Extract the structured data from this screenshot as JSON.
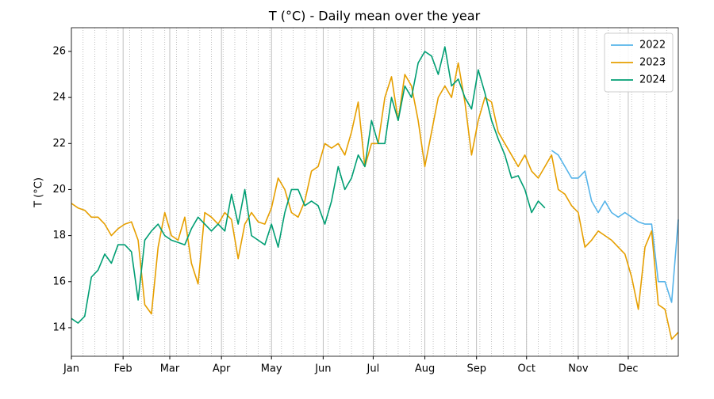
{
  "chart_data": {
    "type": "line",
    "title": "T (°C) - Daily mean over the year",
    "y_label": "T (°C)",
    "x": [
      0,
      4,
      8,
      12,
      16,
      20,
      24,
      28,
      32,
      36,
      40,
      44,
      48,
      52,
      56,
      60,
      64,
      68,
      72,
      76,
      80,
      84,
      88,
      92,
      96,
      100,
      104,
      108,
      112,
      116,
      120,
      124,
      128,
      132,
      136,
      140,
      144,
      148,
      152,
      156,
      160,
      164,
      168,
      172,
      176,
      180,
      184,
      188,
      192,
      196,
      200,
      204,
      208,
      212,
      216,
      220,
      224,
      228,
      232,
      236,
      240,
      244,
      248,
      252,
      256,
      260,
      264,
      268,
      272,
      276,
      280,
      284,
      288,
      292,
      296,
      300,
      304,
      308,
      312,
      316,
      320,
      324,
      328,
      332,
      336,
      340,
      344,
      348,
      352,
      356,
      360,
      364
    ],
    "series": [
      {
        "name": "2022",
        "color": "#56b4e9",
        "values": [
          null,
          null,
          null,
          null,
          null,
          null,
          null,
          null,
          null,
          null,
          null,
          null,
          null,
          null,
          null,
          null,
          null,
          null,
          null,
          null,
          null,
          null,
          null,
          null,
          null,
          null,
          null,
          null,
          null,
          null,
          null,
          null,
          null,
          null,
          null,
          null,
          null,
          null,
          null,
          null,
          null,
          null,
          null,
          null,
          null,
          null,
          null,
          null,
          null,
          null,
          null,
          null,
          null,
          null,
          null,
          null,
          null,
          null,
          null,
          null,
          null,
          null,
          null,
          null,
          null,
          null,
          null,
          null,
          null,
          null,
          null,
          null,
          21.7,
          21.5,
          21.0,
          20.5,
          20.5,
          20.8,
          19.5,
          19.0,
          19.5,
          19.0,
          18.8,
          19.0,
          18.8,
          18.6,
          18.5,
          18.5,
          16.0,
          16.0,
          15.1,
          18.7
        ]
      },
      {
        "name": "2023",
        "color": "#e69f00",
        "values": [
          19.4,
          19.2,
          19.1,
          18.8,
          18.8,
          18.5,
          18.0,
          18.3,
          18.5,
          18.6,
          17.8,
          15.0,
          14.6,
          17.5,
          19.0,
          18.0,
          17.8,
          18.8,
          16.8,
          15.9,
          19.0,
          18.8,
          18.5,
          19.0,
          18.7,
          17.0,
          18.5,
          19.0,
          18.6,
          18.5,
          19.2,
          20.5,
          20.0,
          19.0,
          18.8,
          19.5,
          20.8,
          21.0,
          22.0,
          21.8,
          22.0,
          21.5,
          22.5,
          23.8,
          21.0,
          22.0,
          22.0,
          24.0,
          24.9,
          23.0,
          25.0,
          24.5,
          23.0,
          21.0,
          22.5,
          24.0,
          24.5,
          24.0,
          25.5,
          23.8,
          21.5,
          23.0,
          24.0,
          23.8,
          22.5,
          22.0,
          21.5,
          21.0,
          21.5,
          20.8,
          20.5,
          21.0,
          21.5,
          20.0,
          19.8,
          19.3,
          19.0,
          17.5,
          17.8,
          18.2,
          18.0,
          17.8,
          17.5,
          17.2,
          16.2,
          14.8,
          17.5,
          18.2,
          15.0,
          14.8,
          13.5,
          13.8
        ]
      },
      {
        "name": "2024",
        "color": "#009e73",
        "values": [
          14.4,
          14.2,
          14.5,
          16.2,
          16.5,
          17.2,
          16.8,
          17.6,
          17.6,
          17.3,
          15.2,
          17.8,
          18.2,
          18.5,
          18.0,
          17.8,
          17.7,
          17.6,
          18.3,
          18.8,
          18.5,
          18.2,
          18.5,
          18.2,
          19.8,
          18.5,
          20.0,
          18.0,
          17.8,
          17.6,
          18.5,
          17.5,
          19.0,
          20.0,
          20.0,
          19.3,
          19.5,
          19.3,
          18.5,
          19.5,
          21.0,
          20.0,
          20.5,
          21.5,
          21.0,
          23.0,
          22.0,
          22.0,
          24.0,
          23.0,
          24.5,
          24.0,
          25.5,
          26.0,
          25.8,
          25.0,
          26.2,
          24.5,
          24.8,
          24.0,
          23.5,
          25.2,
          24.2,
          23.0,
          22.2,
          21.5,
          20.5,
          20.6,
          20.0,
          19.0,
          19.5,
          19.2,
          null,
          null,
          null,
          null,
          null,
          null,
          null,
          null,
          null,
          null,
          null,
          null,
          null,
          null,
          null,
          null,
          null,
          null,
          null,
          null
        ]
      }
    ],
    "xlim": [
      0,
      364
    ],
    "ylim": [
      12.76,
      27.03
    ],
    "xticks": [
      {
        "value": 0,
        "label": "Jan"
      },
      {
        "value": 31,
        "label": "Feb"
      },
      {
        "value": 59,
        "label": "Mar"
      },
      {
        "value": 90,
        "label": "Apr"
      },
      {
        "value": 120,
        "label": "May"
      },
      {
        "value": 151,
        "label": "Jun"
      },
      {
        "value": 181,
        "label": "Jul"
      },
      {
        "value": 212,
        "label": "Aug"
      },
      {
        "value": 243,
        "label": "Sep"
      },
      {
        "value": 273,
        "label": "Oct"
      },
      {
        "value": 304,
        "label": "Nov"
      },
      {
        "value": 334,
        "label": "Dec"
      }
    ],
    "xminorticks": [
      7,
      14,
      21,
      28,
      35,
      42,
      49,
      56,
      63,
      70,
      77,
      84,
      91,
      98,
      105,
      112,
      119,
      126,
      133,
      140,
      147,
      154,
      161,
      168,
      175,
      182,
      189,
      196,
      203,
      210,
      217,
      224,
      231,
      238,
      245,
      252,
      259,
      266,
      273,
      280,
      287,
      294,
      301,
      308,
      315,
      322,
      329,
      336,
      343,
      350,
      357
    ],
    "yticks": [
      14,
      16,
      18,
      20,
      22,
      24,
      26
    ],
    "grid": true,
    "legend": "upper right"
  }
}
